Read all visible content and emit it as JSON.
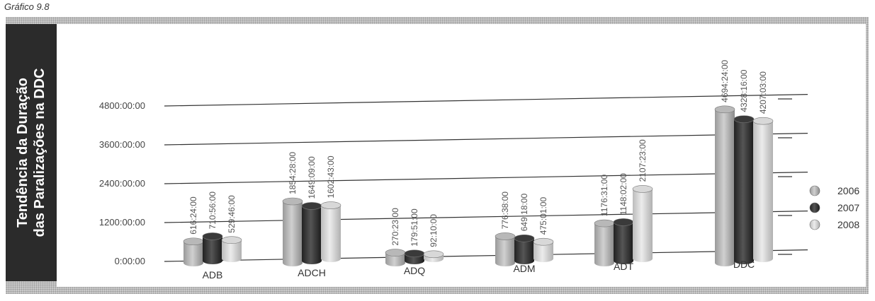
{
  "figure_label": "Gráfico 9.8",
  "chart_data": {
    "type": "bar",
    "title_lines": [
      "Tendência da Duração",
      "das Paralizações na DDC"
    ],
    "categories": [
      "ADB",
      "ADCH",
      "ADQ",
      "ADM",
      "ADT",
      "DDC"
    ],
    "y_ticks": [
      "0:00:00",
      "1200:00:00",
      "2400:00:00",
      "3600:00:00",
      "4800:00:00"
    ],
    "ylim": [
      0,
      4800
    ],
    "grid": true,
    "legend_position": "right",
    "series": [
      {
        "name": "2006",
        "color": "#b8b8b8",
        "values": [
          616.4,
          1854.47,
          270.38,
          776.63,
          1176.52,
          4694.4
        ],
        "labels": [
          "616:24:00",
          "1854:28:00",
          "270:23:00",
          "776:38:00",
          "1176:31:00",
          "4694:24:00"
        ]
      },
      {
        "name": "2007",
        "color": "#3a3a3a",
        "values": [
          710.93,
          1649.15,
          179.85,
          649.3,
          1148.03,
          4328.27
        ],
        "labels": [
          "710:56:00",
          "1649:09:00",
          "179:51:00",
          "649:18:00",
          "1148:02:00",
          "4328:16:00"
        ]
      },
      {
        "name": "2008",
        "color": "#d8d8d8",
        "values": [
          529.77,
          1602.72,
          92.17,
          475.02,
          2107.38,
          4207.05
        ],
        "labels": [
          "529:46:00",
          "1602:43:00",
          "92:10:00",
          "475:01:00",
          "2107:23:00",
          "4207:03:00"
        ]
      }
    ]
  }
}
